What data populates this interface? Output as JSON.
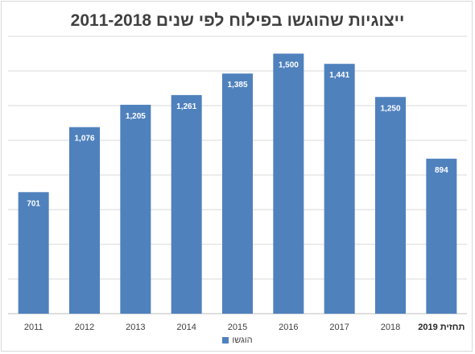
{
  "chart_data": {
    "type": "bar",
    "title": "ייצוגיות שהוגשו בפילוח לפי שנים 2011-2018",
    "categories": [
      "2011",
      "2012",
      "2013",
      "2014",
      "2015",
      "2016",
      "2017",
      "2018",
      "תחזית 2019"
    ],
    "series": [
      {
        "name": "הוגשו",
        "values": [
          701,
          1076,
          1205,
          1261,
          1385,
          1500,
          1441,
          1250,
          894
        ],
        "color": "#4f81bd"
      }
    ],
    "data_labels": [
      "701",
      "1,076",
      "1,205",
      "1,261",
      "1,385",
      "1,500",
      "1,441",
      "1,250",
      "894"
    ],
    "ylim": [
      0,
      1600
    ],
    "ystep": 200,
    "grid": true,
    "y_tick_labels_visible": false,
    "legend": "bottom-center"
  }
}
